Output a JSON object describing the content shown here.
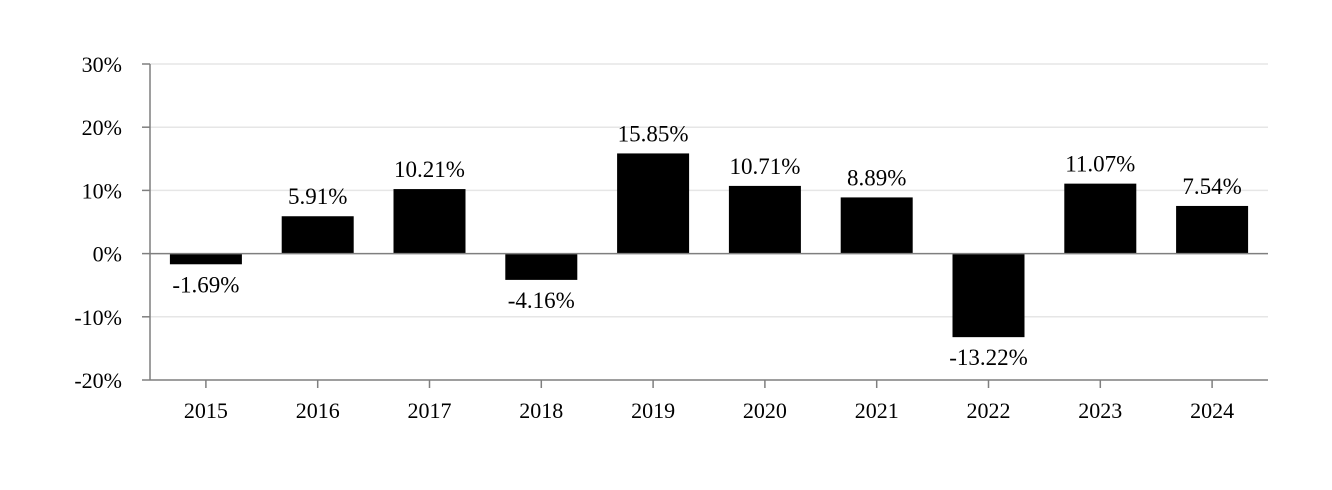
{
  "chart_data": {
    "type": "bar",
    "title": "",
    "xlabel": "",
    "ylabel": "",
    "categories": [
      "2015",
      "2016",
      "2017",
      "2018",
      "2019",
      "2020",
      "2021",
      "2022",
      "2023",
      "2024"
    ],
    "values": [
      -1.69,
      5.91,
      10.21,
      -4.16,
      15.85,
      10.71,
      8.89,
      -13.22,
      11.07,
      7.54
    ],
    "data_labels": [
      "-1.69%",
      "5.91%",
      "10.21%",
      "-4.16%",
      "15.85%",
      "10.71%",
      "8.89%",
      "-13.22%",
      "11.07%",
      "7.54%"
    ],
    "ylim": [
      -20,
      30
    ],
    "yticks": [
      30,
      20,
      10,
      0,
      -10,
      -20
    ],
    "ytick_labels": [
      "30%",
      "20%",
      "10%",
      "0%",
      "-10%",
      "-20%"
    ],
    "grid": true,
    "legend": "none",
    "bar_color": "#000000",
    "grid_color": "#e6e6e6",
    "axis_color": "#7f7f7f"
  }
}
